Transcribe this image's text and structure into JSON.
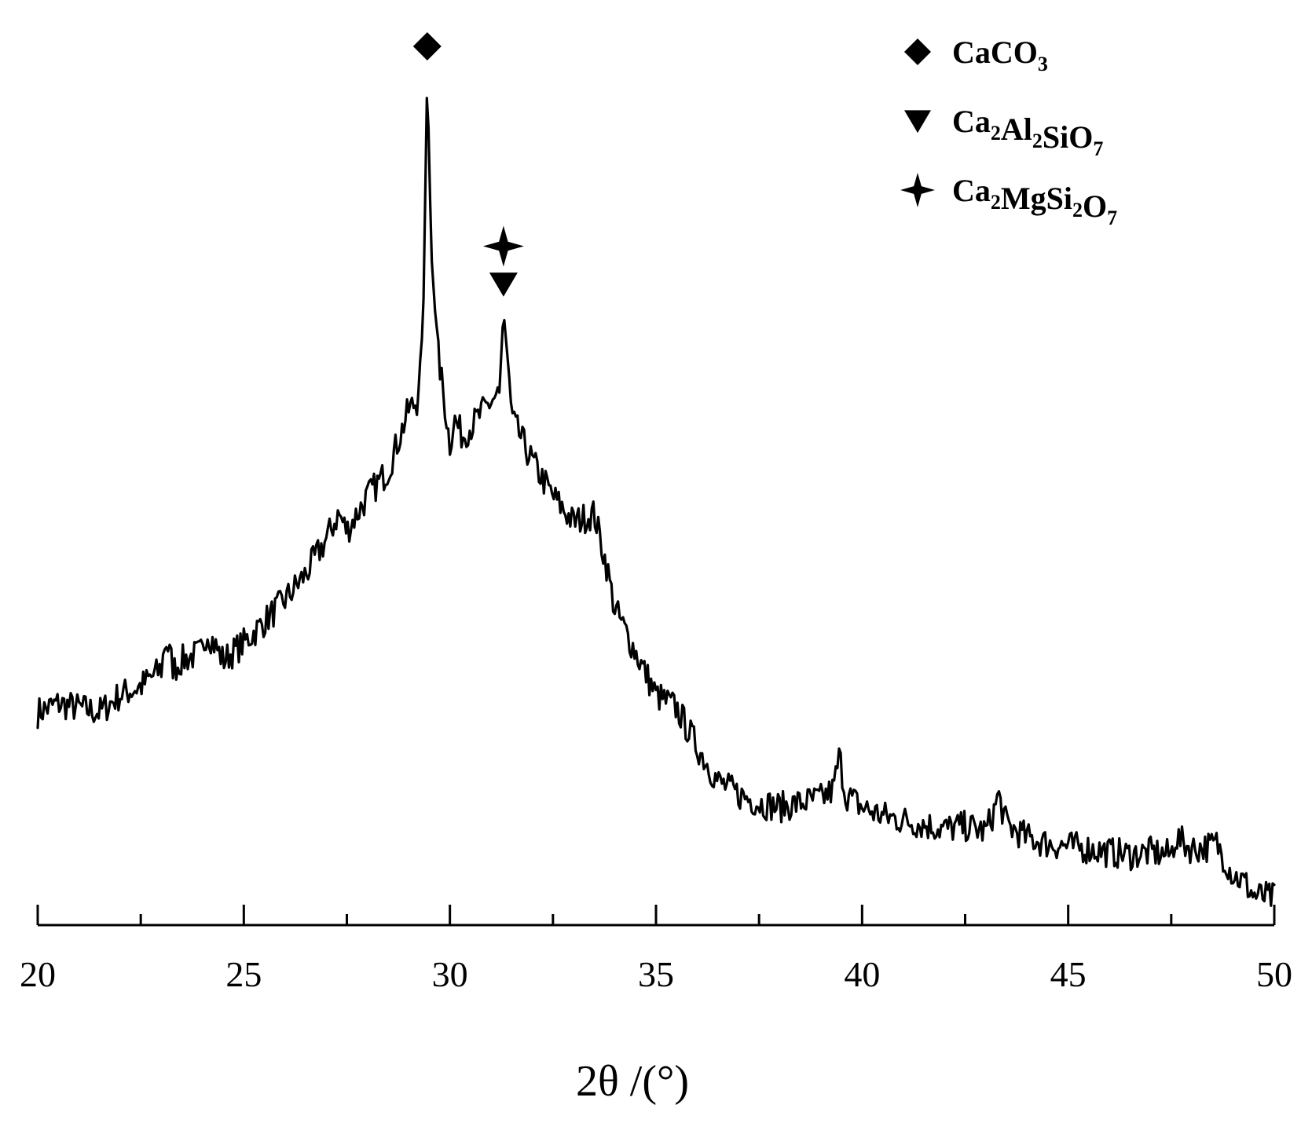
{
  "chart_data": {
    "type": "line",
    "title": "",
    "xlabel": "2θ /(°)",
    "ylabel": "",
    "xlim": [
      20,
      50
    ],
    "ylim": [
      0,
      100
    ],
    "x_ticks": [
      "20",
      "25",
      "30",
      "35",
      "40",
      "45",
      "50"
    ],
    "minor_tick_step": 2.5,
    "y_axis_shown": false,
    "grid": false,
    "legend_position": "top-right",
    "legend": [
      {
        "marker": "diamond",
        "label": [
          {
            "t": "CaCO"
          },
          {
            "t": "3",
            "sub": true
          }
        ]
      },
      {
        "marker": "down-triangle",
        "label": [
          {
            "t": "Ca"
          },
          {
            "t": "2",
            "sub": true
          },
          {
            "t": "Al"
          },
          {
            "t": "2",
            "sub": true
          },
          {
            "t": "SiO"
          },
          {
            "t": "7",
            "sub": true
          }
        ]
      },
      {
        "marker": "four-point-star",
        "label": [
          {
            "t": "Ca"
          },
          {
            "t": "2",
            "sub": true
          },
          {
            "t": "MgSi"
          },
          {
            "t": "2",
            "sub": true
          },
          {
            "t": "O"
          },
          {
            "t": "7",
            "sub": true
          }
        ]
      }
    ],
    "peak_annotations": [
      {
        "x": 29.45,
        "markers": [
          "diamond"
        ]
      },
      {
        "x": 31.3,
        "markers": [
          "down-triangle",
          "four-point-star"
        ]
      }
    ],
    "series": [
      {
        "color": "#000000",
        "x": [
          20.0,
          20.5,
          21.0,
          21.5,
          22.0,
          22.5,
          23.0,
          23.1,
          23.3,
          23.5,
          24.0,
          24.1,
          24.5,
          25.0,
          25.5,
          26.0,
          26.5,
          27.0,
          27.3,
          27.5,
          28.0,
          28.5,
          29.0,
          29.2,
          29.35,
          29.45,
          29.55,
          29.7,
          30.0,
          30.1,
          30.3,
          30.5,
          31.0,
          31.2,
          31.3,
          31.4,
          31.5,
          31.7,
          32.0,
          32.5,
          33.0,
          33.5,
          33.8,
          34.0,
          34.5,
          35.0,
          35.5,
          36.0,
          36.5,
          37.0,
          37.5,
          38.0,
          38.5,
          39.0,
          39.3,
          39.45,
          39.6,
          40.0,
          40.5,
          41.0,
          41.5,
          42.0,
          42.5,
          43.0,
          43.2,
          43.3,
          43.5,
          44.0,
          44.5,
          45.0,
          45.5,
          46.0,
          46.5,
          47.0,
          47.5,
          47.6,
          48.0,
          48.5,
          48.6,
          49.0,
          49.3,
          49.5,
          50.0
        ],
        "y": [
          23,
          24,
          23.5,
          23,
          25,
          26,
          28,
          31.5,
          28,
          29,
          30,
          32.5,
          29,
          31,
          33.5,
          36,
          39,
          43,
          46,
          44,
          48,
          51,
          58,
          59,
          68,
          97,
          76,
          65,
          54,
          57,
          55,
          56,
          59,
          60,
          69.5,
          64,
          57,
          55,
          52,
          48,
          45,
          46,
          40,
          35,
          30,
          25,
          23.5,
          19,
          15,
          13.5,
          12.5,
          12,
          12.5,
          13,
          14,
          18,
          13.5,
          12,
          11,
          10.5,
          10,
          9.5,
          9.8,
          9.2,
          11.5,
          13.5,
          10,
          8.5,
          7.8,
          7.5,
          7.2,
          6.8,
          6.5,
          6.8,
          6.5,
          8.5,
          7.2,
          7.5,
          7.8,
          4.2,
          3.2,
          1.8,
          1.5
        ]
      }
    ]
  }
}
